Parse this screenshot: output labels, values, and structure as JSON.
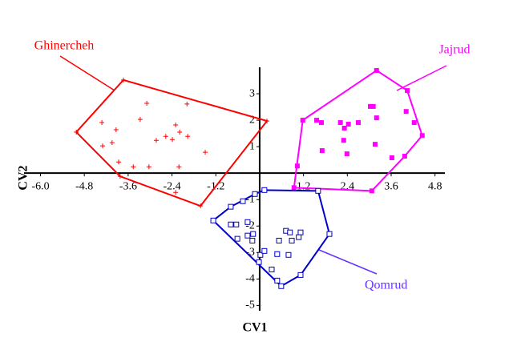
{
  "chart_data": {
    "type": "scatter",
    "xlabel": "CV1",
    "ylabel": "CV2",
    "xlim": [
      -6.45,
      5.07
    ],
    "ylim": [
      -5.2,
      4.0
    ],
    "xticks": [
      {
        "value": -6,
        "label": "-6.0"
      },
      -4.8,
      -3.6,
      -2.4,
      -1.2,
      1.2,
      2.4,
      3.6,
      4.8
    ],
    "yticks": [
      3,
      2,
      1,
      -1,
      -2,
      -3,
      -4,
      -5
    ],
    "series": [
      {
        "name": "Ghinercheh",
        "color": "#ff0000",
        "marker": "plus",
        "x": [
          -3.73,
          0.2,
          -1.62,
          -3.82,
          -5.02,
          -4.32,
          -3.93,
          -4.3,
          -4.04,
          -3.86,
          -3.46,
          -3.03,
          -3.27,
          -3.09,
          -2.83,
          -2.57,
          -2.39,
          -2.3,
          -2.19,
          -1.97,
          -1.99,
          -2.21,
          -2.3,
          -1.49
        ],
        "y": [
          3.52,
          1.97,
          -1.24,
          -0.12,
          1.55,
          1.91,
          1.64,
          1.03,
          1.15,
          0.42,
          0.24,
          0.24,
          2.03,
          2.64,
          1.24,
          1.39,
          1.27,
          1.82,
          1.55,
          1.39,
          2.61,
          0.24,
          -0.73,
          0.79
        ]
      },
      {
        "name": "Jajrud",
        "color": "#ff00ff",
        "marker": "filled-square",
        "x": [
          3.2,
          4.04,
          4.45,
          3.97,
          3.07,
          0.94,
          1.03,
          1.18,
          1.56,
          1.69,
          2.21,
          2.32,
          2.43,
          2.7,
          3.03,
          3.11,
          3.2,
          2.3,
          1.71,
          2.39,
          3.16,
          3.62,
          4.01,
          4.23
        ],
        "y": [
          3.88,
          3.12,
          1.42,
          0.64,
          -0.67,
          -0.55,
          0.27,
          2.0,
          2.0,
          1.91,
          1.91,
          1.7,
          1.85,
          1.91,
          2.52,
          2.52,
          2.09,
          1.24,
          0.85,
          0.73,
          1.09,
          0.58,
          2.33,
          1.91
        ]
      },
      {
        "name": "Qomrud",
        "color": "#0000cc",
        "label_color": "#6633ff",
        "marker": "open-square",
        "x": [
          0.13,
          1.6,
          1.91,
          1.12,
          0.59,
          0.48,
          -1.27,
          -0.79,
          -0.46,
          -0.13,
          -0.79,
          -0.64,
          -0.61,
          -0.33,
          -0.33,
          -0.18,
          -0.2,
          0.02,
          -0.02,
          0.13,
          0.33,
          0.48,
          0.53,
          0.72,
          0.83,
          0.88,
          1.12,
          1.07,
          0.79
        ],
        "y": [
          -0.64,
          -0.67,
          -2.3,
          -3.85,
          -4.27,
          -4.06,
          -1.79,
          -1.27,
          -1.06,
          -0.79,
          -1.94,
          -1.94,
          -2.48,
          -1.85,
          -2.36,
          -2.3,
          -2.55,
          -3.09,
          -3.36,
          -2.94,
          -3.64,
          -3.06,
          -2.55,
          -2.18,
          -2.24,
          -2.55,
          -2.24,
          -2.42,
          -3.09
        ]
      }
    ]
  }
}
